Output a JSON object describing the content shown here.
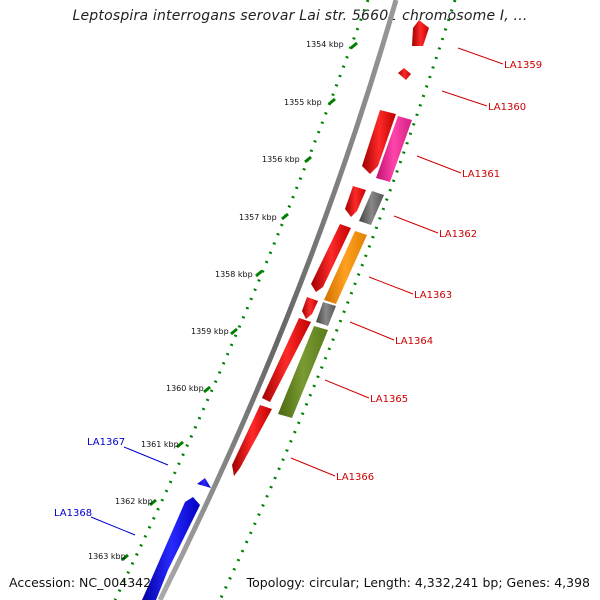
{
  "title": "Leptospira interrogans serovar Lai str. 56601 chromosome I, ...",
  "accession": "Accession: NC_004342",
  "topology": "Topology: circular; Length: 4,332,241 bp; Genes: 4,398",
  "kbp_ticks": [
    "1354 kbp",
    "1355 kbp",
    "1356 kbp",
    "1357 kbp",
    "1358 kbp",
    "1359 kbp",
    "1360 kbp",
    "1361 kbp",
    "1362 kbp",
    "1363 kbp"
  ],
  "genes": [
    {
      "name": "LA1359",
      "strand": "forward",
      "color": "#cc0000"
    },
    {
      "name": "LA1360",
      "strand": "forward",
      "color": "#cc0000"
    },
    {
      "name": "LA1361",
      "strand": "forward",
      "color": "#cc0000"
    },
    {
      "name": "LA1362",
      "strand": "forward",
      "color": "#cc0000"
    },
    {
      "name": "LA1363",
      "strand": "forward",
      "color": "#cc0000"
    },
    {
      "name": "LA1364",
      "strand": "forward",
      "color": "#cc0000"
    },
    {
      "name": "LA1365",
      "strand": "forward",
      "color": "#cc0000"
    },
    {
      "name": "LA1366",
      "strand": "forward",
      "color": "#cc0000"
    },
    {
      "name": "LA1367",
      "strand": "reverse",
      "color": "#0000cc"
    },
    {
      "name": "LA1368",
      "strand": "reverse",
      "color": "#0000cc"
    }
  ],
  "colors": {
    "forward_cds": "#ff0000",
    "reverse_cds": "#0000ff",
    "backbone": "#888888",
    "gc_ticks": "#008000",
    "cog_pink": "#ff3399",
    "cog_gray": "#666666",
    "cog_orange": "#ff9900",
    "cog_olive": "#6b8e23"
  }
}
